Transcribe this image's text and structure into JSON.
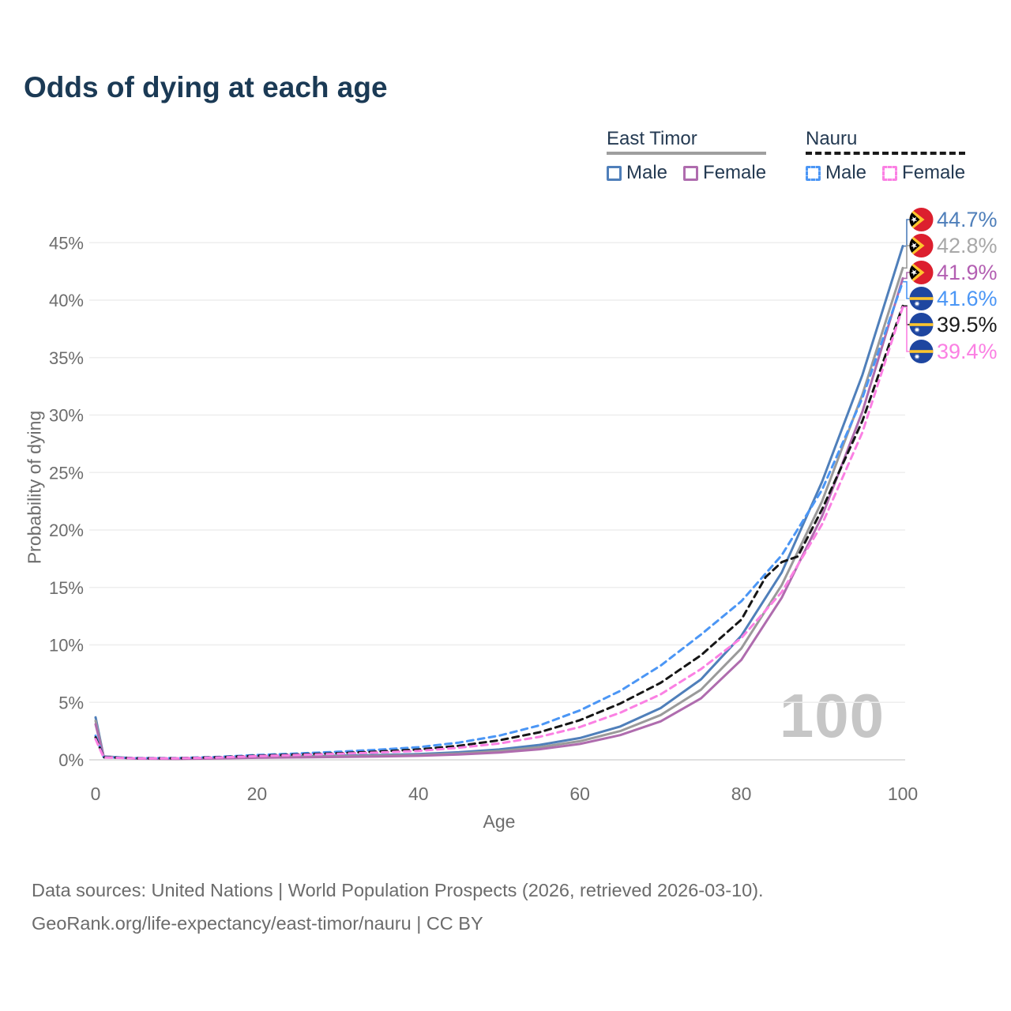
{
  "title": "Odds of dying at each age",
  "legend": {
    "groups": [
      {
        "name": "East Timor",
        "line_style": "solid",
        "underline_color": "#9e9e9e",
        "items": [
          {
            "label": "Male",
            "color": "#4f7fba",
            "dashed": false
          },
          {
            "label": "Female",
            "color": "#af6cae",
            "dashed": false
          }
        ]
      },
      {
        "name": "Nauru",
        "line_style": "dashed",
        "underline_color": "#1a1a1a",
        "items": [
          {
            "label": "Male",
            "color": "#4b96f5",
            "dashed": true
          },
          {
            "label": "Female",
            "color": "#fb80e3",
            "dashed": true
          }
        ]
      }
    ]
  },
  "chart_data": {
    "type": "line",
    "title": "Odds of dying at each age",
    "xlabel": "Age",
    "ylabel": "Probability of dying",
    "xlim": [
      0,
      100
    ],
    "ylim_percent": [
      0,
      47
    ],
    "x_ticks": [
      0,
      20,
      40,
      60,
      80,
      100
    ],
    "y_ticks_percent": [
      0,
      5,
      10,
      15,
      20,
      25,
      30,
      35,
      40,
      45
    ],
    "grid": "horizontal-only",
    "legend_position": "top-right",
    "watermark": "100",
    "axis_color": "#6d6d6d",
    "grid_color": "#eeeeee",
    "zero_line_color": "#d6d6d6",
    "flags": {
      "east-timor": {
        "red": "#dc1f2e",
        "yellow": "#fec52e",
        "black": "#000000",
        "star": "#ffffff"
      },
      "nauru": {
        "blue": "#1e46a0",
        "stripe": "#fec52e",
        "star": "#ffffff"
      }
    },
    "series": [
      {
        "name": "East Timor Male",
        "flag": "east-timor",
        "color": "#4f7fba",
        "dashed": false,
        "end_label": "44.7%",
        "label_color": "#4f7fba",
        "points": [
          [
            0,
            3.7
          ],
          [
            1,
            0.3
          ],
          [
            5,
            0.12
          ],
          [
            10,
            0.1
          ],
          [
            15,
            0.16
          ],
          [
            20,
            0.26
          ],
          [
            25,
            0.31
          ],
          [
            30,
            0.36
          ],
          [
            35,
            0.42
          ],
          [
            40,
            0.5
          ],
          [
            45,
            0.66
          ],
          [
            50,
            0.9
          ],
          [
            55,
            1.3
          ],
          [
            60,
            1.9
          ],
          [
            65,
            2.9
          ],
          [
            70,
            4.5
          ],
          [
            75,
            7.0
          ],
          [
            80,
            10.8
          ],
          [
            85,
            16.3
          ],
          [
            90,
            24.2
          ],
          [
            95,
            33.5
          ],
          [
            100,
            44.7
          ]
        ]
      },
      {
        "name": "East Timor",
        "flag": "east-timor",
        "color": "#9a9a9a",
        "dashed": false,
        "end_label": "42.8%",
        "label_color": "#a8a8a8",
        "points": [
          [
            0,
            3.4
          ],
          [
            1,
            0.28
          ],
          [
            5,
            0.11
          ],
          [
            10,
            0.09
          ],
          [
            15,
            0.14
          ],
          [
            20,
            0.22
          ],
          [
            25,
            0.26
          ],
          [
            30,
            0.3
          ],
          [
            35,
            0.35
          ],
          [
            40,
            0.42
          ],
          [
            45,
            0.55
          ],
          [
            50,
            0.76
          ],
          [
            55,
            1.1
          ],
          [
            60,
            1.62
          ],
          [
            65,
            2.5
          ],
          [
            70,
            3.9
          ],
          [
            75,
            6.1
          ],
          [
            80,
            9.7
          ],
          [
            85,
            15.2
          ],
          [
            90,
            22.5
          ],
          [
            95,
            31.8
          ],
          [
            100,
            42.8
          ]
        ]
      },
      {
        "name": "East Timor Female",
        "flag": "east-timor",
        "color": "#af6cae",
        "dashed": false,
        "end_label": "41.9%",
        "label_color": "#b35fb2",
        "points": [
          [
            0,
            3.1
          ],
          [
            1,
            0.26
          ],
          [
            5,
            0.1
          ],
          [
            10,
            0.08
          ],
          [
            15,
            0.12
          ],
          [
            20,
            0.18
          ],
          [
            25,
            0.21
          ],
          [
            30,
            0.25
          ],
          [
            35,
            0.29
          ],
          [
            40,
            0.35
          ],
          [
            45,
            0.46
          ],
          [
            50,
            0.63
          ],
          [
            55,
            0.92
          ],
          [
            60,
            1.38
          ],
          [
            65,
            2.15
          ],
          [
            70,
            3.35
          ],
          [
            75,
            5.35
          ],
          [
            80,
            8.7
          ],
          [
            85,
            14.1
          ],
          [
            90,
            21.2
          ],
          [
            95,
            30.3
          ],
          [
            100,
            41.9
          ]
        ]
      },
      {
        "name": "Nauru Male",
        "flag": "nauru",
        "color": "#4b96f5",
        "dashed": true,
        "end_label": "41.6%",
        "label_color": "#4b96f5",
        "points": [
          [
            0,
            2.1
          ],
          [
            1,
            0.24
          ],
          [
            5,
            0.15
          ],
          [
            10,
            0.15
          ],
          [
            15,
            0.25
          ],
          [
            20,
            0.42
          ],
          [
            25,
            0.55
          ],
          [
            30,
            0.7
          ],
          [
            35,
            0.88
          ],
          [
            40,
            1.1
          ],
          [
            45,
            1.5
          ],
          [
            50,
            2.1
          ],
          [
            55,
            3.0
          ],
          [
            60,
            4.3
          ],
          [
            65,
            6.0
          ],
          [
            70,
            8.2
          ],
          [
            75,
            10.9
          ],
          [
            80,
            13.8
          ],
          [
            85,
            17.8
          ],
          [
            90,
            23.5
          ],
          [
            95,
            31.5
          ],
          [
            100,
            41.6
          ]
        ]
      },
      {
        "name": "Nauru",
        "flag": "nauru",
        "color": "#161616",
        "dashed": true,
        "end_label": "39.5%",
        "label_color": "#1a1a1a",
        "points": [
          [
            0,
            1.95
          ],
          [
            1,
            0.22
          ],
          [
            5,
            0.14
          ],
          [
            10,
            0.14
          ],
          [
            15,
            0.22
          ],
          [
            20,
            0.36
          ],
          [
            25,
            0.47
          ],
          [
            30,
            0.58
          ],
          [
            35,
            0.72
          ],
          [
            40,
            0.9
          ],
          [
            45,
            1.22
          ],
          [
            50,
            1.7
          ],
          [
            55,
            2.4
          ],
          [
            60,
            3.45
          ],
          [
            65,
            4.9
          ],
          [
            70,
            6.7
          ],
          [
            75,
            9.1
          ],
          [
            80,
            12.2
          ],
          [
            83,
            15.9
          ],
          [
            85,
            17.2
          ],
          [
            87,
            17.7
          ],
          [
            90,
            21.8
          ],
          [
            95,
            29.5
          ],
          [
            100,
            39.5
          ]
        ]
      },
      {
        "name": "Nauru Female",
        "flag": "nauru",
        "color": "#fb80e3",
        "dashed": true,
        "end_label": "39.4%",
        "label_color": "#fb80e3",
        "points": [
          [
            0,
            1.8
          ],
          [
            1,
            0.2
          ],
          [
            5,
            0.13
          ],
          [
            10,
            0.13
          ],
          [
            15,
            0.2
          ],
          [
            20,
            0.32
          ],
          [
            25,
            0.42
          ],
          [
            30,
            0.52
          ],
          [
            35,
            0.64
          ],
          [
            40,
            0.78
          ],
          [
            45,
            1.05
          ],
          [
            50,
            1.42
          ],
          [
            55,
            2.0
          ],
          [
            60,
            2.85
          ],
          [
            65,
            4.1
          ],
          [
            70,
            5.7
          ],
          [
            75,
            7.9
          ],
          [
            80,
            10.6
          ],
          [
            85,
            14.6
          ],
          [
            90,
            20.5
          ],
          [
            95,
            28.5
          ],
          [
            100,
            39.4
          ]
        ]
      }
    ]
  },
  "footer": {
    "line1": "Data sources: United Nations | World Population Prospects (2026, retrieved 2026-03-10).",
    "line2": "GeoRank.org/life-expectancy/east-timor/nauru | CC BY"
  }
}
